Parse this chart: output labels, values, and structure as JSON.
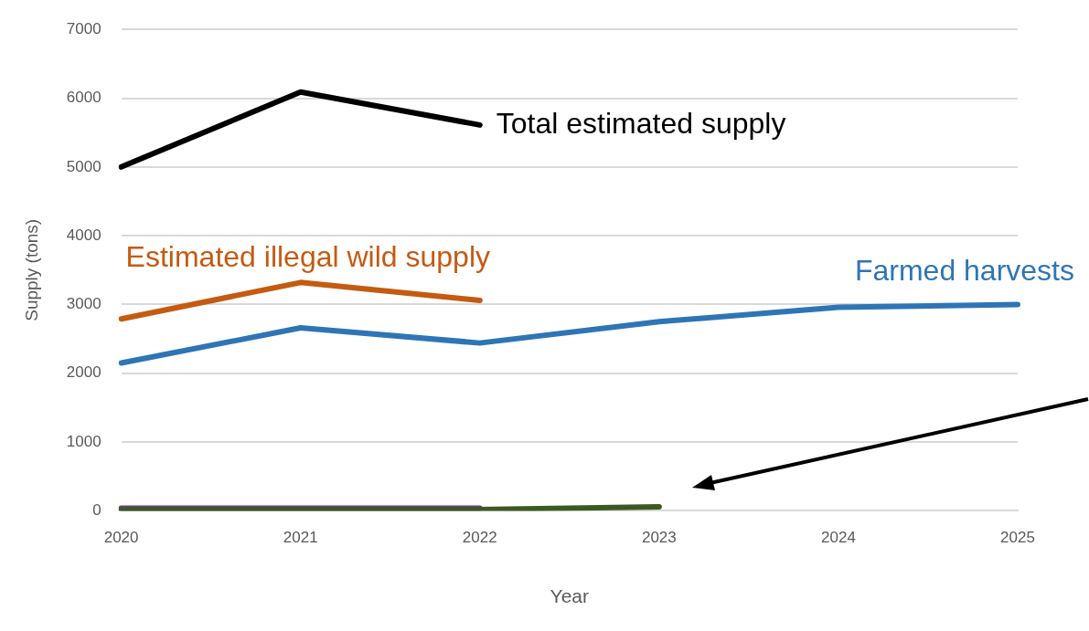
{
  "chart_data": {
    "type": "line",
    "xlabel": "Year",
    "ylabel": "Supply (tons)",
    "categories": [
      "2020",
      "2021",
      "2022",
      "2023",
      "2024",
      "2025"
    ],
    "series": [
      {
        "name": "Total estimated supply",
        "color": "#000000",
        "values": [
          5000,
          6090,
          5610,
          null,
          null,
          null
        ]
      },
      {
        "name": "Estimated illegal wild supply",
        "color": "#c55a11",
        "values": [
          2790,
          3320,
          3060,
          null,
          null,
          null
        ]
      },
      {
        "name": "Farmed harvests",
        "color": "#2e75b6",
        "values": [
          2150,
          2660,
          2440,
          2750,
          2960,
          3000
        ]
      },
      {
        "color": "#7030a0",
        "values": [
          40,
          40,
          40,
          null,
          null,
          null
        ]
      },
      {
        "color": "#3b5a23",
        "values": [
          20,
          20,
          20,
          60,
          null,
          null
        ]
      }
    ],
    "ylim": [
      0,
      7000
    ],
    "yticks": [
      0,
      1000,
      2000,
      3000,
      4000,
      5000,
      6000,
      7000
    ],
    "grid": "y",
    "legend": false,
    "marker": "none",
    "line_style": "solid"
  }
}
